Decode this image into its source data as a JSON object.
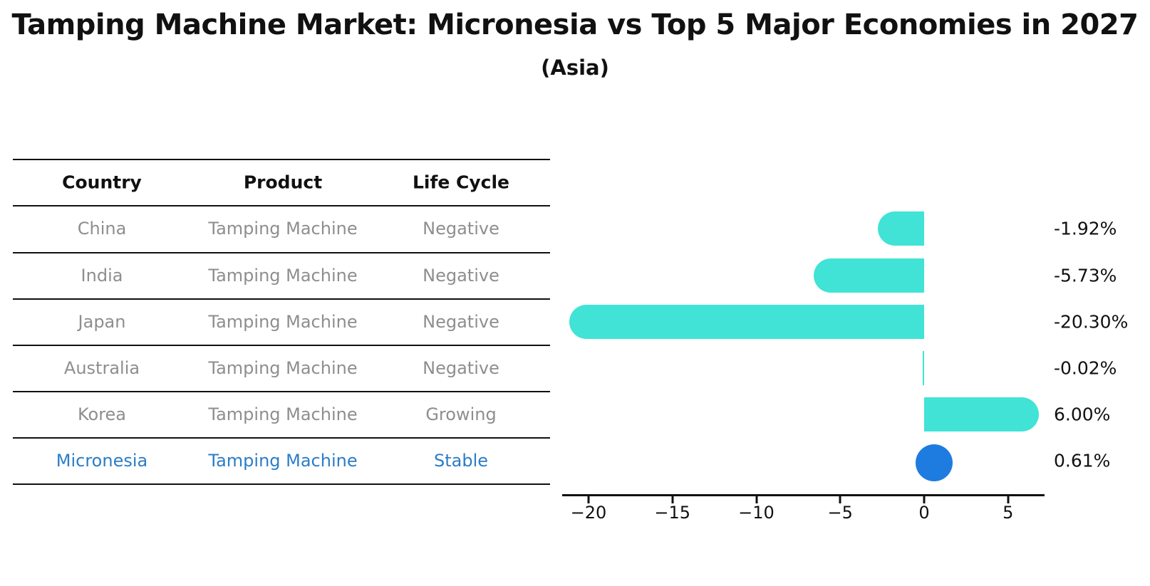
{
  "title": "Tamping Machine Market: Micronesia vs Top 5 Major Economies in 2027",
  "subtitle": "(Asia)",
  "table": {
    "columns": [
      "Country",
      "Product",
      "Life Cycle"
    ],
    "rows": [
      {
        "country": "China",
        "product": "Tamping Machine",
        "life_cycle": "Negative",
        "highlighted": false
      },
      {
        "country": "India",
        "product": "Tamping Machine",
        "life_cycle": "Negative",
        "highlighted": false
      },
      {
        "country": "Japan",
        "product": "Tamping Machine",
        "life_cycle": "Negative",
        "highlighted": false
      },
      {
        "country": "Australia",
        "product": "Tamping Machine",
        "life_cycle": "Negative",
        "highlighted": false
      },
      {
        "country": "Korea",
        "product": "Tamping Machine",
        "life_cycle": "Growing",
        "highlighted": false
      },
      {
        "country": "Micronesia",
        "product": "Tamping Machine",
        "life_cycle": "Stable",
        "highlighted": true
      }
    ]
  },
  "chart_data": {
    "type": "bar",
    "orientation": "horizontal",
    "categories": [
      "China",
      "India",
      "Japan",
      "Australia",
      "Korea",
      "Micronesia"
    ],
    "values": [
      -1.92,
      -5.73,
      -20.3,
      -0.02,
      6.0,
      0.61
    ],
    "value_labels": [
      "-1.92%",
      "-5.73%",
      "-20.30%",
      "-0.02%",
      "6.00%",
      "0.61%"
    ],
    "marker_styles": [
      "bar",
      "bar",
      "bar",
      "bar",
      "bar",
      "dot"
    ],
    "x_ticks": [
      -20,
      -15,
      -10,
      -5,
      0,
      5
    ],
    "x_tick_labels": [
      "−20",
      "−15",
      "−10",
      "−5",
      "0",
      "5"
    ],
    "xlim": [
      -21.6,
      7.2
    ],
    "grid": false,
    "legend": "none",
    "title": "Tamping Machine Market: Micronesia vs Top 5 Major Economies in 2027",
    "subtitle": "(Asia)",
    "colors": {
      "bar": "#40e3d6",
      "dot": "#1e7ce0",
      "highlight_text": "#2b7dc7",
      "row_text": "#8e8e8e",
      "axis": "#111111"
    }
  }
}
